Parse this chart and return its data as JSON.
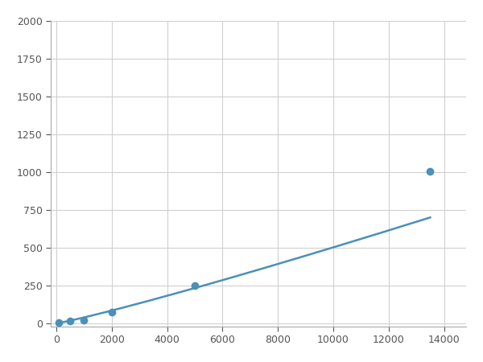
{
  "x_points": [
    100,
    500,
    1000,
    2000,
    5000,
    13500
  ],
  "y_points": [
    5,
    15,
    22,
    75,
    250,
    1005
  ],
  "line_color": "#4A90B8",
  "marker_color": "#4A90B8",
  "marker_size": 7,
  "line_width": 1.8,
  "xlim": [
    -200,
    14800
  ],
  "ylim": [
    -20,
    2000
  ],
  "xticks": [
    0,
    2000,
    4000,
    6000,
    8000,
    10000,
    12000,
    14000
  ],
  "yticks": [
    0,
    250,
    500,
    750,
    1000,
    1250,
    1500,
    1750,
    2000
  ],
  "grid_color": "#D0D0D0",
  "background_color": "#FFFFFF",
  "fig_background_color": "#FFFFFF"
}
